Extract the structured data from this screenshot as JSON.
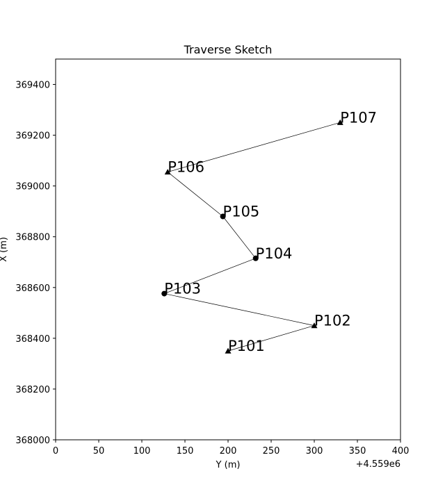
{
  "chart_data": {
    "type": "scatter",
    "title": "Traverse Sketch",
    "xlabel": "Y (m)",
    "ylabel": "X (m)",
    "x_offset_label": "+4.559e6",
    "xlim": [
      0,
      400
    ],
    "ylim": [
      368000,
      369500
    ],
    "x_ticks": [
      0,
      50,
      100,
      150,
      200,
      250,
      300,
      350,
      400
    ],
    "x_tick_labels": [
      "0",
      "50",
      "100",
      "150",
      "200",
      "250",
      "300",
      "350",
      "400"
    ],
    "y_ticks": [
      368000,
      368200,
      368400,
      368600,
      368800,
      369000,
      369200,
      369400
    ],
    "y_tick_labels": [
      "368000",
      "368200",
      "368400",
      "368600",
      "368800",
      "369000",
      "369200",
      "369400"
    ],
    "grid": false,
    "line_color": "#000000",
    "points": [
      {
        "name": "P101",
        "x": 200,
        "y": 368350,
        "marker": "triangle"
      },
      {
        "name": "P102",
        "x": 300,
        "y": 368450,
        "marker": "triangle"
      },
      {
        "name": "P103",
        "x": 126,
        "y": 368576,
        "marker": "circle"
      },
      {
        "name": "P104",
        "x": 232,
        "y": 368715,
        "marker": "circle"
      },
      {
        "name": "P105",
        "x": 194,
        "y": 368880,
        "marker": "circle"
      },
      {
        "name": "P106",
        "x": 130,
        "y": 369055,
        "marker": "triangle"
      },
      {
        "name": "P107",
        "x": 330,
        "y": 369250,
        "marker": "triangle"
      }
    ]
  }
}
